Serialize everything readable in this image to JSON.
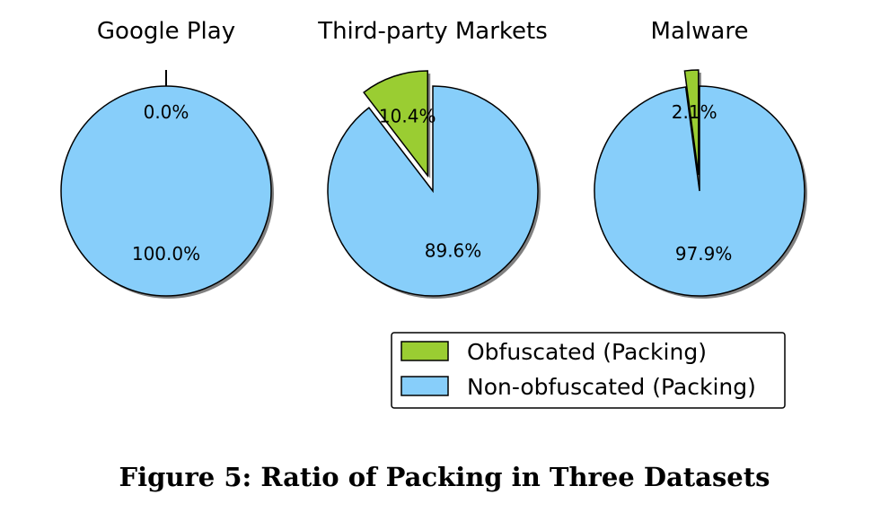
{
  "figure": {
    "caption": "Figure 5: Ratio of Packing in Three Datasets"
  },
  "colors": {
    "obfuscated": "#9acd32",
    "non_obfuscated": "#87cefa",
    "shadow": "#808080",
    "edge": "#000000"
  },
  "chart_data": [
    {
      "type": "pie",
      "title": "Google Play",
      "series": [
        {
          "name": "Obfuscated (Packing)",
          "value": 0.0,
          "label": "0.0%",
          "exploded": true
        },
        {
          "name": "Non-obfuscated (Packing)",
          "value": 100.0,
          "label": "100.0%",
          "exploded": false
        }
      ]
    },
    {
      "type": "pie",
      "title": "Third-party Markets",
      "series": [
        {
          "name": "Obfuscated (Packing)",
          "value": 10.4,
          "label": "10.4%",
          "exploded": true
        },
        {
          "name": "Non-obfuscated (Packing)",
          "value": 89.6,
          "label": "89.6%",
          "exploded": false
        }
      ]
    },
    {
      "type": "pie",
      "title": "Malware",
      "series": [
        {
          "name": "Obfuscated (Packing)",
          "value": 2.1,
          "label": "2.1%",
          "exploded": true
        },
        {
          "name": "Non-obfuscated (Packing)",
          "value": 97.9,
          "label": "97.9%",
          "exploded": false
        }
      ]
    }
  ],
  "legend": {
    "placement": "bottom-right",
    "entries": [
      {
        "label": "Obfuscated (Packing)",
        "color": "#9acd32"
      },
      {
        "label": "Non-obfuscated (Packing)",
        "color": "#87cefa"
      }
    ]
  }
}
